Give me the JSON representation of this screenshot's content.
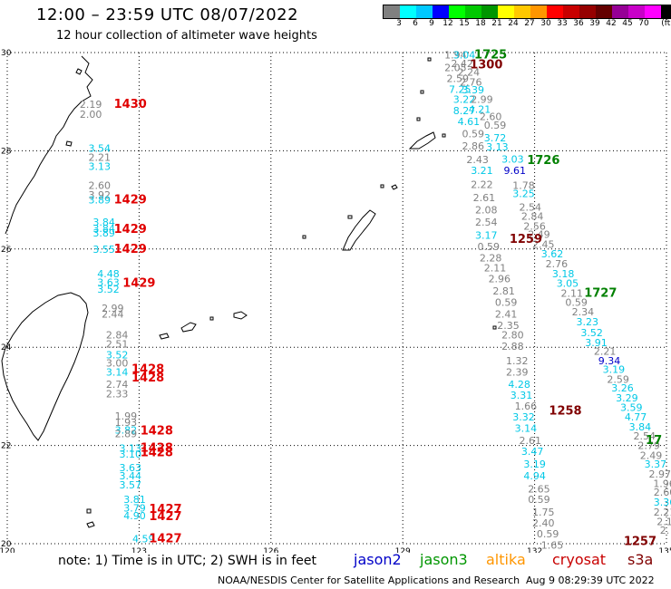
{
  "header": {
    "title": "12:00 – 23:59 UTC 08/07/2022",
    "subtitle": "12 hour collection of altimeter wave heights"
  },
  "colorbar": {
    "colors": [
      "#808080",
      "#00ffff",
      "#00c8ff",
      "#0000ff",
      "#00ff00",
      "#00c800",
      "#009600",
      "#ffff00",
      "#ffc800",
      "#ff9600",
      "#ff0000",
      "#c80000",
      "#960000",
      "#640000",
      "#960096",
      "#c800c8",
      "#ff00ff",
      "#000000"
    ],
    "labels": [
      "3",
      "6",
      "9",
      "12",
      "15",
      "18",
      "21",
      "24",
      "27",
      "30",
      "33",
      "36",
      "39",
      "42",
      "45",
      "70",
      "(ft)"
    ]
  },
  "map": {
    "lon_range": [
      120,
      135
    ],
    "lat_range": [
      20,
      30
    ],
    "lon_ticks": [
      120,
      123,
      126,
      129,
      132,
      135
    ],
    "lat_ticks": [
      20,
      22,
      24,
      26,
      28,
      30
    ],
    "lon_labels": [
      "120",
      "123",
      "126",
      "129",
      "132",
      "135"
    ],
    "lat_labels": [
      "20",
      "22",
      "24",
      "26",
      "28",
      "30"
    ]
  },
  "chart_data": {
    "type": "scatter",
    "units": "ft",
    "pass_times": [
      {
        "lon": 122.8,
        "lat": 28.95,
        "text": "1430",
        "color": "#e00000"
      },
      {
        "lon": 122.8,
        "lat": 27.0,
        "text": "1429",
        "color": "#e00000"
      },
      {
        "lon": 122.8,
        "lat": 26.4,
        "text": "1429",
        "color": "#e00000"
      },
      {
        "lon": 122.8,
        "lat": 26.0,
        "text": "1429",
        "color": "#e00000"
      },
      {
        "lon": 123.0,
        "lat": 25.3,
        "text": "1429",
        "color": "#e00000"
      },
      {
        "lon": 123.2,
        "lat": 23.55,
        "text": "1428",
        "color": "#e00000"
      },
      {
        "lon": 123.2,
        "lat": 23.38,
        "text": "1428",
        "color": "#e00000"
      },
      {
        "lon": 123.4,
        "lat": 22.3,
        "text": "1428",
        "color": "#e00000"
      },
      {
        "lon": 123.4,
        "lat": 21.95,
        "text": "1428",
        "color": "#e00000"
      },
      {
        "lon": 123.4,
        "lat": 21.85,
        "text": "1428",
        "color": "#e00000"
      },
      {
        "lon": 123.6,
        "lat": 20.7,
        "text": "1427",
        "color": "#e00000"
      },
      {
        "lon": 123.6,
        "lat": 20.55,
        "text": "1427",
        "color": "#e00000"
      },
      {
        "lon": 123.6,
        "lat": 20.1,
        "text": "1427",
        "color": "#e00000"
      },
      {
        "lon": 131.0,
        "lat": 29.95,
        "text": "1725",
        "color": "#008000"
      },
      {
        "lon": 130.9,
        "lat": 29.75,
        "text": "1300",
        "color": "#800000"
      },
      {
        "lon": 132.2,
        "lat": 27.8,
        "text": "1726",
        "color": "#008000"
      },
      {
        "lon": 131.8,
        "lat": 26.2,
        "text": "1259",
        "color": "#800000"
      },
      {
        "lon": 133.5,
        "lat": 25.1,
        "text": "1727",
        "color": "#008000"
      },
      {
        "lon": 132.7,
        "lat": 22.7,
        "text": "1258",
        "color": "#800000"
      },
      {
        "lon": 134.9,
        "lat": 22.1,
        "text": "17",
        "color": "#008000"
      },
      {
        "lon": 134.4,
        "lat": 20.05,
        "text": "1257",
        "color": "#800000"
      }
    ],
    "points": [
      {
        "lon": 121.9,
        "lat": 28.95,
        "v": "2.19",
        "c": "#808080"
      },
      {
        "lon": 121.9,
        "lat": 28.75,
        "v": "2.00",
        "c": "#808080"
      },
      {
        "lon": 122.1,
        "lat": 28.05,
        "v": "3.54",
        "c": "#00c8e6"
      },
      {
        "lon": 122.1,
        "lat": 27.87,
        "v": "2.21",
        "c": "#808080"
      },
      {
        "lon": 122.1,
        "lat": 27.68,
        "v": "3.13",
        "c": "#00c8e6"
      },
      {
        "lon": 122.1,
        "lat": 27.3,
        "v": "2.60",
        "c": "#808080"
      },
      {
        "lon": 122.1,
        "lat": 27.1,
        "v": "3.92",
        "c": "#808080"
      },
      {
        "lon": 122.1,
        "lat": 27.0,
        "v": "3.89",
        "c": "#00c8e6"
      },
      {
        "lon": 122.2,
        "lat": 26.55,
        "v": "3.84",
        "c": "#00c8e6"
      },
      {
        "lon": 122.2,
        "lat": 26.42,
        "v": "3.84",
        "c": "#00c8e6"
      },
      {
        "lon": 122.2,
        "lat": 26.33,
        "v": "3.89",
        "c": "#00c8e6"
      },
      {
        "lon": 122.2,
        "lat": 26.0,
        "v": "3.55",
        "c": "#00c8e6"
      },
      {
        "lon": 122.3,
        "lat": 25.5,
        "v": "4.48",
        "c": "#00c8e6"
      },
      {
        "lon": 122.3,
        "lat": 25.32,
        "v": "3.63",
        "c": "#00c8e6"
      },
      {
        "lon": 122.3,
        "lat": 25.18,
        "v": "3.52",
        "c": "#00c8e6"
      },
      {
        "lon": 122.4,
        "lat": 24.8,
        "v": "2.99",
        "c": "#808080"
      },
      {
        "lon": 122.4,
        "lat": 24.68,
        "v": "2.44",
        "c": "#808080"
      },
      {
        "lon": 122.5,
        "lat": 24.25,
        "v": "2.84",
        "c": "#808080"
      },
      {
        "lon": 122.5,
        "lat": 24.07,
        "v": "2.51",
        "c": "#808080"
      },
      {
        "lon": 122.5,
        "lat": 23.85,
        "v": "3.52",
        "c": "#00c8e6"
      },
      {
        "lon": 122.5,
        "lat": 23.68,
        "v": "3.00",
        "c": "#808080"
      },
      {
        "lon": 122.5,
        "lat": 23.5,
        "v": "3.14",
        "c": "#00c8e6"
      },
      {
        "lon": 122.5,
        "lat": 23.25,
        "v": "2.74",
        "c": "#808080"
      },
      {
        "lon": 122.5,
        "lat": 23.05,
        "v": "2.33",
        "c": "#808080"
      },
      {
        "lon": 122.7,
        "lat": 22.6,
        "v": "1.99",
        "c": "#808080"
      },
      {
        "lon": 122.7,
        "lat": 22.47,
        "v": "1.93",
        "c": "#808080"
      },
      {
        "lon": 122.7,
        "lat": 22.32,
        "v": "3.82",
        "c": "#00c8e6"
      },
      {
        "lon": 122.7,
        "lat": 22.24,
        "v": "2.89",
        "c": "#808080"
      },
      {
        "lon": 122.8,
        "lat": 21.95,
        "v": "3.13",
        "c": "#00c8e6"
      },
      {
        "lon": 122.8,
        "lat": 21.83,
        "v": "3.10",
        "c": "#00c8e6"
      },
      {
        "lon": 122.8,
        "lat": 21.55,
        "v": "3.63",
        "c": "#00c8e6"
      },
      {
        "lon": 122.8,
        "lat": 21.38,
        "v": "3.44",
        "c": "#00c8e6"
      },
      {
        "lon": 122.8,
        "lat": 21.2,
        "v": "3.57",
        "c": "#00c8e6"
      },
      {
        "lon": 122.9,
        "lat": 20.9,
        "v": "3.81",
        "c": "#00c8e6"
      },
      {
        "lon": 122.9,
        "lat": 20.73,
        "v": "3.79",
        "c": "#00c8e6"
      },
      {
        "lon": 122.9,
        "lat": 20.57,
        "v": "4.90",
        "c": "#00c8e6"
      },
      {
        "lon": 123.1,
        "lat": 20.1,
        "v": "4.59",
        "c": "#00c8e6"
      },
      {
        "lon": 130.2,
        "lat": 29.95,
        "v": "1.94",
        "c": "#808080"
      },
      {
        "lon": 130.4,
        "lat": 29.95,
        "v": "3.04",
        "c": "#00c8e6"
      },
      {
        "lon": 130.35,
        "lat": 29.78,
        "v": "2.42",
        "c": "#808080"
      },
      {
        "lon": 130.2,
        "lat": 29.7,
        "v": "2.05",
        "c": "#808080"
      },
      {
        "lon": 130.5,
        "lat": 29.6,
        "v": "2.24",
        "c": "#808080"
      },
      {
        "lon": 130.25,
        "lat": 29.47,
        "v": "2.59",
        "c": "#808080"
      },
      {
        "lon": 130.55,
        "lat": 29.4,
        "v": "2.76",
        "c": "#808080"
      },
      {
        "lon": 130.3,
        "lat": 29.25,
        "v": "7.25",
        "c": "#00c8e6"
      },
      {
        "lon": 130.6,
        "lat": 29.24,
        "v": "3.39",
        "c": "#00c8e6"
      },
      {
        "lon": 130.4,
        "lat": 29.05,
        "v": "3.22",
        "c": "#00c8e6"
      },
      {
        "lon": 130.8,
        "lat": 29.05,
        "v": "2.99",
        "c": "#808080"
      },
      {
        "lon": 130.4,
        "lat": 28.82,
        "v": "8.27",
        "c": "#00c8e6"
      },
      {
        "lon": 130.75,
        "lat": 28.85,
        "v": "4.21",
        "c": "#00c8e6"
      },
      {
        "lon": 130.5,
        "lat": 28.6,
        "v": "4.61",
        "c": "#00c8e6"
      },
      {
        "lon": 131.0,
        "lat": 28.7,
        "v": "2.60",
        "c": "#808080"
      },
      {
        "lon": 131.1,
        "lat": 28.52,
        "v": "0.59",
        "c": "#808080"
      },
      {
        "lon": 130.6,
        "lat": 28.35,
        "v": "0.59",
        "c": "#808080"
      },
      {
        "lon": 131.1,
        "lat": 28.27,
        "v": "3.72",
        "c": "#00c8e6"
      },
      {
        "lon": 130.6,
        "lat": 28.1,
        "v": "2.86",
        "c": "#808080"
      },
      {
        "lon": 131.15,
        "lat": 28.08,
        "v": "3.13",
        "c": "#00c8e6"
      },
      {
        "lon": 130.7,
        "lat": 27.82,
        "v": "2.43",
        "c": "#808080"
      },
      {
        "lon": 131.5,
        "lat": 27.83,
        "v": "3.03",
        "c": "#00c8e6"
      },
      {
        "lon": 130.8,
        "lat": 27.6,
        "v": "3.21",
        "c": "#00c8e6"
      },
      {
        "lon": 131.55,
        "lat": 27.6,
        "v": "9.61",
        "c": "#0000c8"
      },
      {
        "lon": 130.8,
        "lat": 27.32,
        "v": "2.22",
        "c": "#808080"
      },
      {
        "lon": 131.75,
        "lat": 27.3,
        "v": "1.78",
        "c": "#808080"
      },
      {
        "lon": 130.85,
        "lat": 27.05,
        "v": "2.61",
        "c": "#808080"
      },
      {
        "lon": 131.75,
        "lat": 27.13,
        "v": "3.25",
        "c": "#00c8e6"
      },
      {
        "lon": 130.9,
        "lat": 26.8,
        "v": "2.08",
        "c": "#808080"
      },
      {
        "lon": 131.9,
        "lat": 26.85,
        "v": "2.54",
        "c": "#808080"
      },
      {
        "lon": 131.95,
        "lat": 26.67,
        "v": "2.84",
        "c": "#808080"
      },
      {
        "lon": 130.9,
        "lat": 26.55,
        "v": "2.54",
        "c": "#808080"
      },
      {
        "lon": 132.0,
        "lat": 26.47,
        "v": "2.56",
        "c": "#808080"
      },
      {
        "lon": 130.9,
        "lat": 26.28,
        "v": "3.17",
        "c": "#00c8e6"
      },
      {
        "lon": 132.1,
        "lat": 26.3,
        "v": "2.49",
        "c": "#808080"
      },
      {
        "lon": 130.95,
        "lat": 26.05,
        "v": "0.59",
        "c": "#808080"
      },
      {
        "lon": 132.2,
        "lat": 26.1,
        "v": "2.45",
        "c": "#808080"
      },
      {
        "lon": 131.0,
        "lat": 25.82,
        "v": "2.28",
        "c": "#808080"
      },
      {
        "lon": 132.4,
        "lat": 25.9,
        "v": "3.62",
        "c": "#00c8e6"
      },
      {
        "lon": 131.1,
        "lat": 25.62,
        "v": "2.11",
        "c": "#808080"
      },
      {
        "lon": 132.5,
        "lat": 25.7,
        "v": "2.76",
        "c": "#808080"
      },
      {
        "lon": 131.2,
        "lat": 25.4,
        "v": "2.96",
        "c": "#808080"
      },
      {
        "lon": 132.65,
        "lat": 25.5,
        "v": "3.18",
        "c": "#00c8e6"
      },
      {
        "lon": 131.3,
        "lat": 25.15,
        "v": "2.81",
        "c": "#808080"
      },
      {
        "lon": 132.75,
        "lat": 25.3,
        "v": "3.05",
        "c": "#00c8e6"
      },
      {
        "lon": 132.85,
        "lat": 25.1,
        "v": "2.11",
        "c": "#808080"
      },
      {
        "lon": 131.35,
        "lat": 24.92,
        "v": "0.59",
        "c": "#808080"
      },
      {
        "lon": 132.95,
        "lat": 24.92,
        "v": "0.59",
        "c": "#808080"
      },
      {
        "lon": 131.35,
        "lat": 24.68,
        "v": "2.41",
        "c": "#808080"
      },
      {
        "lon": 133.1,
        "lat": 24.72,
        "v": "2.34",
        "c": "#808080"
      },
      {
        "lon": 131.4,
        "lat": 24.45,
        "v": "2.35",
        "c": "#808080"
      },
      {
        "lon": 133.2,
        "lat": 24.52,
        "v": "3.23",
        "c": "#00c8e6"
      },
      {
        "lon": 131.5,
        "lat": 24.25,
        "v": "2.80",
        "c": "#808080"
      },
      {
        "lon": 133.3,
        "lat": 24.3,
        "v": "3.52",
        "c": "#00c8e6"
      },
      {
        "lon": 131.5,
        "lat": 24.02,
        "v": "2.88",
        "c": "#808080"
      },
      {
        "lon": 133.4,
        "lat": 24.1,
        "v": "3.91",
        "c": "#00c8e6"
      },
      {
        "lon": 133.6,
        "lat": 23.92,
        "v": "2.21",
        "c": "#808080"
      },
      {
        "lon": 131.6,
        "lat": 23.73,
        "v": "1.32",
        "c": "#808080"
      },
      {
        "lon": 133.7,
        "lat": 23.73,
        "v": "9.34",
        "c": "#0000c8"
      },
      {
        "lon": 131.6,
        "lat": 23.5,
        "v": "2.39",
        "c": "#808080"
      },
      {
        "lon": 133.8,
        "lat": 23.55,
        "v": "3.19",
        "c": "#00c8e6"
      },
      {
        "lon": 131.65,
        "lat": 23.25,
        "v": "4.28",
        "c": "#00c8e6"
      },
      {
        "lon": 133.9,
        "lat": 23.35,
        "v": "2.59",
        "c": "#808080"
      },
      {
        "lon": 131.7,
        "lat": 23.03,
        "v": "3.31",
        "c": "#00c8e6"
      },
      {
        "lon": 134.0,
        "lat": 23.17,
        "v": "3.26",
        "c": "#00c8e6"
      },
      {
        "lon": 134.1,
        "lat": 22.97,
        "v": "3.29",
        "c": "#00c8e6"
      },
      {
        "lon": 131.8,
        "lat": 22.8,
        "v": "1.66",
        "c": "#808080"
      },
      {
        "lon": 134.2,
        "lat": 22.78,
        "v": "3.59",
        "c": "#00c8e6"
      },
      {
        "lon": 131.75,
        "lat": 22.58,
        "v": "3.32",
        "c": "#00c8e6"
      },
      {
        "lon": 134.3,
        "lat": 22.58,
        "v": "4.77",
        "c": "#00c8e6"
      },
      {
        "lon": 131.8,
        "lat": 22.35,
        "v": "3.14",
        "c": "#00c8e6"
      },
      {
        "lon": 134.4,
        "lat": 22.38,
        "v": "3.84",
        "c": "#00c8e6"
      },
      {
        "lon": 131.9,
        "lat": 22.1,
        "v": "2.61",
        "c": "#808080"
      },
      {
        "lon": 134.5,
        "lat": 22.2,
        "v": "2.54",
        "c": "#808080"
      },
      {
        "lon": 134.6,
        "lat": 22.0,
        "v": "2.79",
        "c": "#808080"
      },
      {
        "lon": 131.95,
        "lat": 21.88,
        "v": "3.47",
        "c": "#00c8e6"
      },
      {
        "lon": 134.65,
        "lat": 21.8,
        "v": "2.49",
        "c": "#808080"
      },
      {
        "lon": 132.0,
        "lat": 21.62,
        "v": "3.19",
        "c": "#00c8e6"
      },
      {
        "lon": 134.75,
        "lat": 21.62,
        "v": "3.37",
        "c": "#00c8e6"
      },
      {
        "lon": 132.0,
        "lat": 21.38,
        "v": "4.94",
        "c": "#00c8e6"
      },
      {
        "lon": 134.85,
        "lat": 21.42,
        "v": "2.97",
        "c": "#808080"
      },
      {
        "lon": 132.1,
        "lat": 21.12,
        "v": "2.65",
        "c": "#808080"
      },
      {
        "lon": 134.95,
        "lat": 21.23,
        "v": "1.96",
        "c": "#808080"
      },
      {
        "lon": 132.1,
        "lat": 20.9,
        "v": "0.59",
        "c": "#808080"
      },
      {
        "lon": 135.0,
        "lat": 21.05,
        "v": "2.60",
        "c": "#808080"
      },
      {
        "lon": 135.05,
        "lat": 20.85,
        "v": "3.36",
        "c": "#00c8e6"
      },
      {
        "lon": 132.2,
        "lat": 20.65,
        "v": "1.75",
        "c": "#808080"
      },
      {
        "lon": 135.0,
        "lat": 20.65,
        "v": "2.21",
        "c": "#808080"
      },
      {
        "lon": 132.2,
        "lat": 20.42,
        "v": "2.40",
        "c": "#808080"
      },
      {
        "lon": 135.05,
        "lat": 20.45,
        "v": "2.1",
        "c": "#808080"
      },
      {
        "lon": 132.3,
        "lat": 20.2,
        "v": "0.59",
        "c": "#808080"
      },
      {
        "lon": 135.1,
        "lat": 20.28,
        "v": "2.",
        "c": "#808080"
      },
      {
        "lon": 132.4,
        "lat": 19.97,
        "v": "1.65",
        "c": "#808080"
      }
    ]
  },
  "footer": {
    "note": "note:  1) Time is in UTC;  2) SWH is in feet",
    "legend": [
      {
        "name": "jason2",
        "color": "#0000c8"
      },
      {
        "name": "jason3",
        "color": "#009600"
      },
      {
        "name": "altika",
        "color": "#ff9600"
      },
      {
        "name": "cryosat",
        "color": "#c80000"
      },
      {
        "name": "s3a",
        "color": "#800000"
      }
    ],
    "credit": "NOAA/NESDIS Center for Satellite Applications and Research",
    "timestamp": "Aug  9 08:29:39 UTC 2022"
  }
}
